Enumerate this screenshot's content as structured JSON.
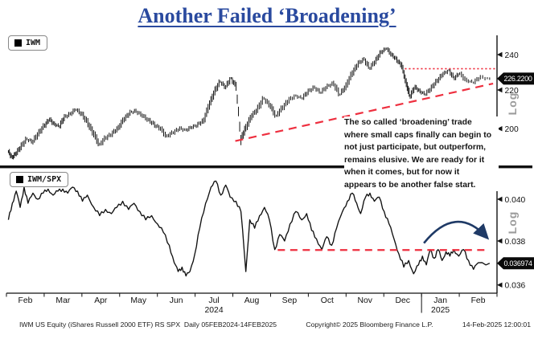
{
  "title": {
    "text": "Another Failed ‘Broadening’",
    "color": "#2a4a9f"
  },
  "colors": {
    "ink": "#111111",
    "red_annotation": "#ee2f3f",
    "navy_arrow": "#1f3a66",
    "log_label_gray": "#9b9b9b",
    "tag_bg": "#0a0a0a",
    "tag_text": "#ffffff"
  },
  "panels": [
    {
      "legend": "IWM",
      "scale_label": "Log",
      "y_ticks": [
        {
          "label": "240",
          "value": 240
        },
        {
          "label": "220",
          "value": 220
        },
        {
          "label": "200",
          "value": 200
        }
      ],
      "last_price_tag": {
        "label": "226.2200",
        "value": 226.22
      }
    },
    {
      "legend": "IWM/SPX",
      "scale_label": "Log",
      "y_ticks": [
        {
          "label": "0.040",
          "value": 0.04
        },
        {
          "label": "0.038",
          "value": 0.038
        },
        {
          "label": "0.036",
          "value": 0.036
        }
      ],
      "last_price_tag": {
        "label": "0.036974",
        "value": 0.036974
      }
    }
  ],
  "x_axis": {
    "months": [
      {
        "label": "Feb"
      },
      {
        "label": "Mar"
      },
      {
        "label": "Apr"
      },
      {
        "label": "May"
      },
      {
        "label": "Jun"
      },
      {
        "label": "Jul",
        "year": "2024"
      },
      {
        "label": "Aug"
      },
      {
        "label": "Sep"
      },
      {
        "label": "Oct"
      },
      {
        "label": "Nov"
      },
      {
        "label": "Dec"
      },
      {
        "label": "Jan",
        "year": "2025"
      },
      {
        "label": "Feb"
      }
    ]
  },
  "annotation": {
    "text": "The so called ‘broadening’ trade\nwhere small caps finally can begin to\nnot just participate, but outperform,\nremains elusive. We are ready for it\nwhen it comes, but for now it\nappears to be another false start."
  },
  "footer": {
    "left": "IWM US Equity (iShares Russell 2000 ETF) RS SPX  Daily 05FEB2024-14FEB2025",
    "center": "Copyright© 2025 Bloomberg Finance L.P.",
    "right": "14-Feb-2025 12:00:01"
  },
  "chart_data": [
    {
      "type": "line",
      "style": "ohlc-daily-bars",
      "name": "IWM",
      "title": "IWM US Equity (iShares Russell 2000 ETF) daily price",
      "scale": "log",
      "ylim": [
        185,
        248
      ],
      "y_ticks": [
        240,
        220,
        200
      ],
      "last_price": 226.22,
      "x_unit": "fraction of Feb2024-Feb2025 axis",
      "points": [
        [
          0.004,
          189
        ],
        [
          0.012,
          186.5
        ],
        [
          0.02,
          188
        ],
        [
          0.03,
          191.5
        ],
        [
          0.042,
          195
        ],
        [
          0.054,
          193.5
        ],
        [
          0.066,
          198
        ],
        [
          0.078,
          201.5
        ],
        [
          0.088,
          204.5
        ],
        [
          0.098,
          202.5
        ],
        [
          0.108,
          201
        ],
        [
          0.118,
          205.5
        ],
        [
          0.13,
          207.5
        ],
        [
          0.142,
          209.5
        ],
        [
          0.154,
          207.5
        ],
        [
          0.166,
          203
        ],
        [
          0.178,
          197.5
        ],
        [
          0.19,
          192.5
        ],
        [
          0.203,
          195.5
        ],
        [
          0.216,
          197.5
        ],
        [
          0.228,
          200.5
        ],
        [
          0.24,
          204.5
        ],
        [
          0.252,
          208
        ],
        [
          0.264,
          209
        ],
        [
          0.277,
          206.5
        ],
        [
          0.29,
          204.5
        ],
        [
          0.302,
          202
        ],
        [
          0.314,
          200
        ],
        [
          0.327,
          196.5
        ],
        [
          0.34,
          198
        ],
        [
          0.353,
          200
        ],
        [
          0.366,
          199.5
        ],
        [
          0.378,
          200.5
        ],
        [
          0.39,
          202
        ],
        [
          0.402,
          204
        ],
        [
          0.414,
          212
        ],
        [
          0.425,
          219.5
        ],
        [
          0.436,
          224.5
        ],
        [
          0.447,
          221.5
        ],
        [
          0.458,
          226.5
        ],
        [
          0.468,
          222
        ],
        [
          0.478,
          194.5
        ],
        [
          0.488,
          200.5
        ],
        [
          0.5,
          206
        ],
        [
          0.512,
          210
        ],
        [
          0.525,
          215.5
        ],
        [
          0.538,
          211.5
        ],
        [
          0.55,
          206.5
        ],
        [
          0.563,
          210.5
        ],
        [
          0.576,
          214.5
        ],
        [
          0.59,
          217
        ],
        [
          0.603,
          215.5
        ],
        [
          0.615,
          219
        ],
        [
          0.628,
          221.5
        ],
        [
          0.641,
          218.5
        ],
        [
          0.654,
          222
        ],
        [
          0.667,
          223.5
        ],
        [
          0.68,
          217.5
        ],
        [
          0.692,
          222
        ],
        [
          0.705,
          229
        ],
        [
          0.717,
          234.5
        ],
        [
          0.729,
          237.5
        ],
        [
          0.741,
          232
        ],
        [
          0.753,
          236.5
        ],
        [
          0.764,
          241.5
        ],
        [
          0.775,
          243.5
        ],
        [
          0.786,
          240
        ],
        [
          0.796,
          237
        ],
        [
          0.806,
          233.5
        ],
        [
          0.815,
          224
        ],
        [
          0.823,
          216.5
        ],
        [
          0.833,
          221.5
        ],
        [
          0.843,
          219.5
        ],
        [
          0.854,
          217.5
        ],
        [
          0.866,
          221
        ],
        [
          0.878,
          225
        ],
        [
          0.89,
          228.5
        ],
        [
          0.902,
          231
        ],
        [
          0.913,
          226.5
        ],
        [
          0.924,
          229
        ],
        [
          0.938,
          225.5
        ],
        [
          0.952,
          224
        ],
        [
          0.966,
          227
        ],
        [
          0.985,
          226.22
        ]
      ],
      "trendline": {
        "from": [
          0.4665,
          194.0
        ],
        "to": [
          0.992,
          223.5
        ],
        "style": "dashed",
        "color": "red"
      },
      "resistance_line": {
        "value": 231.8,
        "x_from": 0.812,
        "x_to": 1.0,
        "style": "dotted",
        "color": "red"
      }
    },
    {
      "type": "line",
      "name": "IWM/SPX",
      "title": "IWM relative to SPX (ratio)",
      "scale": "log",
      "ylim": [
        0.036,
        0.0415
      ],
      "y_ticks": [
        0.04,
        0.038,
        0.036
      ],
      "last_price": 0.036974,
      "x_unit": "fraction of Feb2024-Feb2025 axis",
      "points": [
        [
          0.004,
          0.039
        ],
        [
          0.012,
          0.0398
        ],
        [
          0.02,
          0.0404
        ],
        [
          0.028,
          0.0396
        ],
        [
          0.036,
          0.0406
        ],
        [
          0.044,
          0.0398
        ],
        [
          0.054,
          0.0403
        ],
        [
          0.064,
          0.04
        ],
        [
          0.075,
          0.0403
        ],
        [
          0.085,
          0.0405
        ],
        [
          0.095,
          0.0402
        ],
        [
          0.105,
          0.0404
        ],
        [
          0.115,
          0.0405
        ],
        [
          0.125,
          0.0403
        ],
        [
          0.135,
          0.0406
        ],
        [
          0.145,
          0.0404
        ],
        [
          0.155,
          0.0399
        ],
        [
          0.165,
          0.0402
        ],
        [
          0.178,
          0.0396
        ],
        [
          0.19,
          0.0392
        ],
        [
          0.202,
          0.0395
        ],
        [
          0.214,
          0.0393
        ],
        [
          0.225,
          0.0396
        ],
        [
          0.237,
          0.0399
        ],
        [
          0.249,
          0.0395
        ],
        [
          0.26,
          0.0398
        ],
        [
          0.272,
          0.0394
        ],
        [
          0.284,
          0.039
        ],
        [
          0.296,
          0.0392
        ],
        [
          0.308,
          0.0388
        ],
        [
          0.32,
          0.0384
        ],
        [
          0.332,
          0.0378
        ],
        [
          0.342,
          0.037
        ],
        [
          0.35,
          0.0366
        ],
        [
          0.358,
          0.0368
        ],
        [
          0.366,
          0.0364
        ],
        [
          0.374,
          0.0366
        ],
        [
          0.384,
          0.0374
        ],
        [
          0.394,
          0.0386
        ],
        [
          0.406,
          0.0398
        ],
        [
          0.417,
          0.0406
        ],
        [
          0.427,
          0.0409
        ],
        [
          0.437,
          0.0402
        ],
        [
          0.447,
          0.0407
        ],
        [
          0.456,
          0.0401
        ],
        [
          0.468,
          0.0399
        ],
        [
          0.478,
          0.0394
        ],
        [
          0.488,
          0.0366
        ],
        [
          0.496,
          0.039
        ],
        [
          0.506,
          0.0386
        ],
        [
          0.516,
          0.0392
        ],
        [
          0.526,
          0.0396
        ],
        [
          0.536,
          0.039
        ],
        [
          0.547,
          0.0376
        ],
        [
          0.557,
          0.0383
        ],
        [
          0.567,
          0.038
        ],
        [
          0.578,
          0.0388
        ],
        [
          0.59,
          0.0394
        ],
        [
          0.602,
          0.039
        ],
        [
          0.612,
          0.0393
        ],
        [
          0.622,
          0.0385
        ],
        [
          0.632,
          0.0381
        ],
        [
          0.643,
          0.0376
        ],
        [
          0.653,
          0.0382
        ],
        [
          0.663,
          0.0378
        ],
        [
          0.673,
          0.0386
        ],
        [
          0.685,
          0.0394
        ],
        [
          0.695,
          0.0399
        ],
        [
          0.705,
          0.0403
        ],
        [
          0.714,
          0.0398
        ],
        [
          0.722,
          0.0393
        ],
        [
          0.732,
          0.0401
        ],
        [
          0.741,
          0.0403
        ],
        [
          0.75,
          0.0399
        ],
        [
          0.76,
          0.0401
        ],
        [
          0.77,
          0.0394
        ],
        [
          0.78,
          0.0388
        ],
        [
          0.79,
          0.0381
        ],
        [
          0.8,
          0.0374
        ],
        [
          0.81,
          0.0368
        ],
        [
          0.82,
          0.0371
        ],
        [
          0.83,
          0.0365
        ],
        [
          0.84,
          0.0369
        ],
        [
          0.848,
          0.0373
        ],
        [
          0.856,
          0.0369
        ],
        [
          0.864,
          0.0376
        ],
        [
          0.872,
          0.0372
        ],
        [
          0.88,
          0.0376
        ],
        [
          0.888,
          0.0371
        ],
        [
          0.896,
          0.0375
        ],
        [
          0.904,
          0.0373
        ],
        [
          0.912,
          0.0376
        ],
        [
          0.922,
          0.0373
        ],
        [
          0.932,
          0.0376
        ],
        [
          0.942,
          0.0371
        ],
        [
          0.952,
          0.0367
        ],
        [
          0.962,
          0.037
        ],
        [
          0.985,
          0.036974
        ]
      ],
      "support_line": {
        "value": 0.03758,
        "x_from": 0.553,
        "x_to": 0.982,
        "style": "dashed",
        "color": "red"
      },
      "arrow": {
        "from": [
          0.851,
          0.0379
        ],
        "peak": [
          0.915,
          0.0389
        ],
        "to": [
          0.978,
          0.0382
        ],
        "color": "navy"
      }
    }
  ]
}
